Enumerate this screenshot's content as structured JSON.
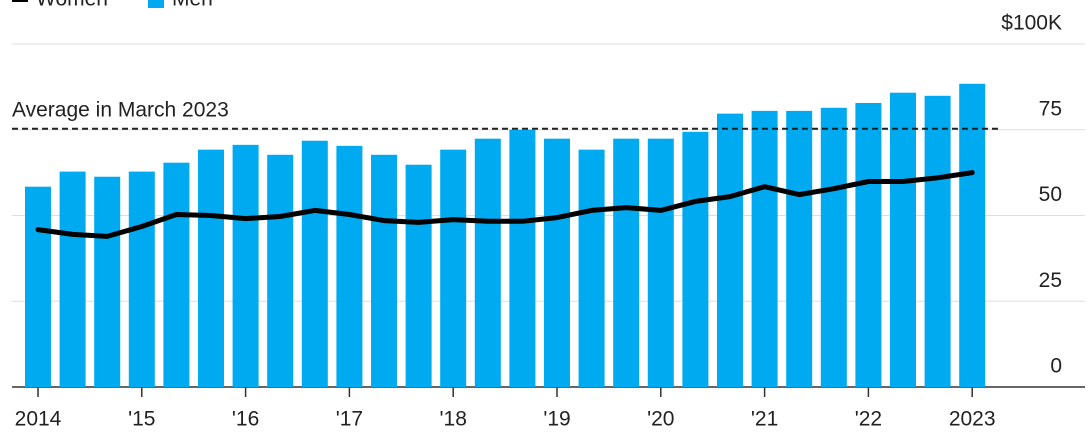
{
  "chart_data": {
    "type": "bar",
    "legend": [
      "Women",
      "Men"
    ],
    "categories": [
      "2014",
      null,
      null,
      "'15",
      null,
      null,
      "'16",
      null,
      null,
      "'17",
      null,
      null,
      "'18",
      null,
      null,
      "'19",
      null,
      null,
      "'20",
      null,
      null,
      "'21",
      null,
      null,
      "'22",
      null,
      null,
      "2023"
    ],
    "series": [
      {
        "name": "Men",
        "type": "bar",
        "color": "#00aaf0",
        "values": [
          58.4,
          62.8,
          61.3,
          62.8,
          65.4,
          69.2,
          70.6,
          67.7,
          71.8,
          70.3,
          67.7,
          64.8,
          69.2,
          72.4,
          75,
          72.4,
          69.2,
          72.4,
          72.4,
          74.4,
          79.7,
          80.5,
          80.5,
          81.4,
          82.8,
          85.8,
          84.9,
          88.4
        ]
      },
      {
        "name": "Women",
        "type": "line",
        "color": "#000000",
        "values": [
          45.9,
          44.5,
          43.9,
          46.8,
          50.3,
          50,
          49.1,
          49.7,
          51.5,
          50.3,
          48.5,
          48,
          48.8,
          48.3,
          48.3,
          49.4,
          51.5,
          52.3,
          51.5,
          54.1,
          55.5,
          58.4,
          56.1,
          57.8,
          59.9,
          59.9,
          61,
          62.5
        ]
      }
    ],
    "reference_line": {
      "label": "Average in March 2023",
      "value": 75.3
    },
    "ylim": [
      0,
      100
    ],
    "yticks": [
      0,
      25,
      50,
      75,
      {
        "value": 100,
        "label": "$100K"
      }
    ],
    "y_axis_side": "right",
    "grid": true
  }
}
